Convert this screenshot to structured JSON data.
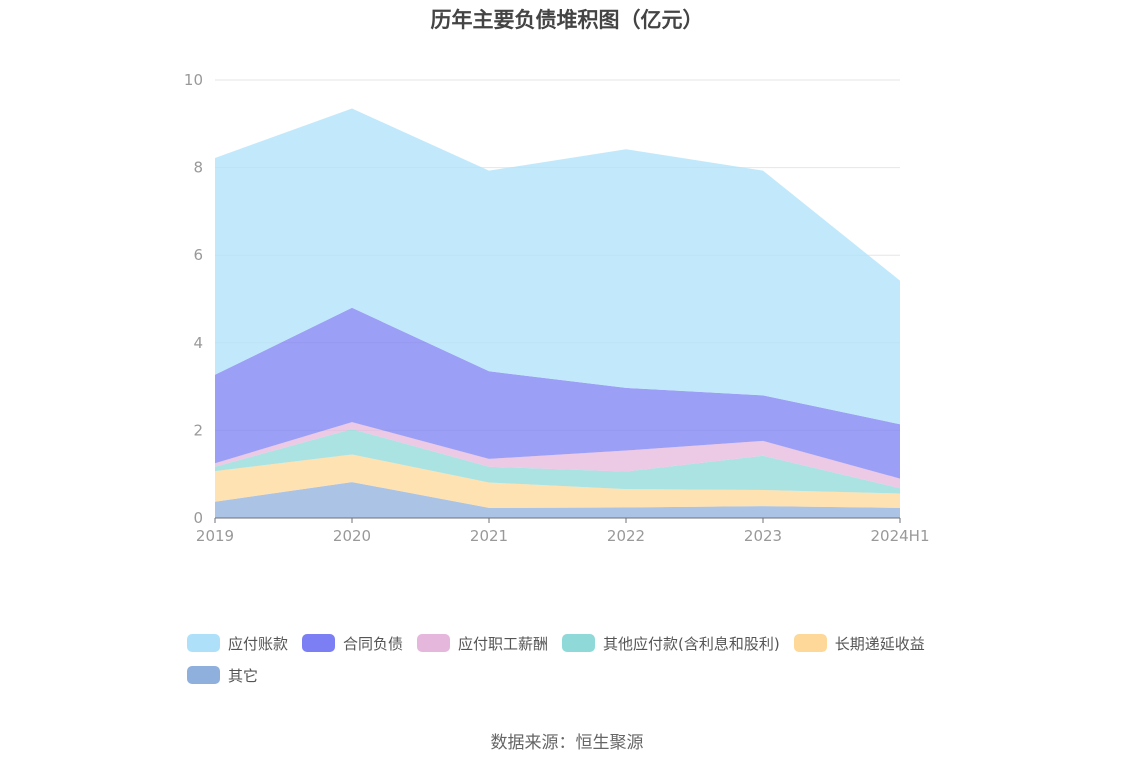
{
  "chart_data": {
    "type": "area",
    "stacked": true,
    "title": "历年主要负债堆积图（亿元）",
    "categories": [
      "2019",
      "2020",
      "2021",
      "2022",
      "2023",
      "2024H1"
    ],
    "ylim": [
      0,
      10
    ],
    "yticks": [
      0,
      2,
      4,
      6,
      8,
      10
    ],
    "grid": true,
    "legend_position": "bottom",
    "series": [
      {
        "name": "其它",
        "color": "#8fafdc",
        "values": [
          0.37,
          0.82,
          0.23,
          0.24,
          0.27,
          0.23
        ]
      },
      {
        "name": "长期递延收益",
        "color": "#fdd898",
        "values": [
          0.7,
          0.63,
          0.58,
          0.42,
          0.37,
          0.33
        ]
      },
      {
        "name": "其他应付款(含利息和股利)",
        "color": "#8fd9d9",
        "values": [
          0.1,
          0.58,
          0.36,
          0.4,
          0.78,
          0.12
        ]
      },
      {
        "name": "应付职工薪酬",
        "color": "#e5b7dc",
        "values": [
          0.08,
          0.16,
          0.18,
          0.48,
          0.34,
          0.22
        ]
      },
      {
        "name": "合同负债",
        "color": "#7b7ff3",
        "values": [
          2.02,
          2.61,
          2.0,
          1.43,
          1.04,
          1.24
        ]
      },
      {
        "name": "应付账款",
        "color": "#aee1f9",
        "values": [
          4.95,
          4.55,
          4.58,
          5.45,
          5.13,
          3.28
        ]
      }
    ],
    "legend_order": [
      "应付账款",
      "合同负债",
      "应付职工薪酬",
      "其他应付款(含利息和股利)",
      "长期递延收益",
      "其它"
    ]
  },
  "source_label": "数据来源：恒生聚源"
}
